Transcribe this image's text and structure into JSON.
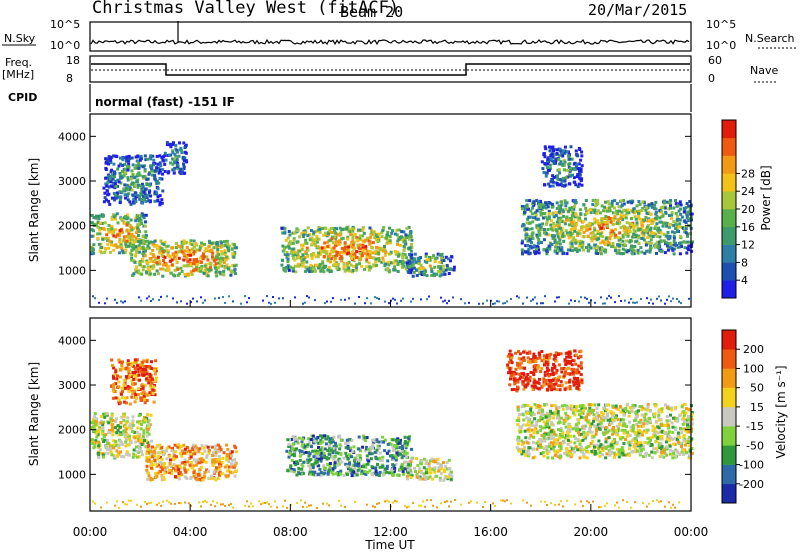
{
  "header": {
    "title": "Christmas Valley West (fitACF)",
    "beam": "Beam 20",
    "date": "20/Mar/2015"
  },
  "top_panels": {
    "nsky_label": "N.Sky",
    "nsearch_label": "N.Search",
    "nsky_ticks": [
      "10^5",
      "10^0"
    ],
    "nsearch_ticks": [
      "10^5",
      "10^0"
    ],
    "freq_label_1": "Freq.",
    "freq_label_2": "[MHz]",
    "freq_ticks": [
      "18",
      "8"
    ],
    "nave_label": "Nave",
    "nave_ticks": [
      "60",
      "0"
    ],
    "cpid_label": "CPID",
    "cpid_text": "normal (fast) -151 IF"
  },
  "chart_data": [
    {
      "type": "heatmap",
      "name": "power",
      "xlabel": "Time UT",
      "ylabel": "Slant Range [km]",
      "xlim": [
        0,
        24
      ],
      "ylim": [
        180,
        4500
      ],
      "x_ticks": [
        "00:00",
        "04:00",
        "08:00",
        "12:00",
        "16:00",
        "20:00",
        "00:00"
      ],
      "y_ticks": [
        1000,
        2000,
        3000,
        4000
      ],
      "colorbar": {
        "label": "Power [dB]",
        "ticks": [
          4,
          8,
          12,
          16,
          20,
          24,
          28
        ],
        "colors": [
          "#1e1ee6",
          "#1f4fb0",
          "#2e7fa8",
          "#3d9a6a",
          "#58b04a",
          "#a8c63a",
          "#f2c21a",
          "#f29a14",
          "#ee5a10",
          "#e01c0c"
        ]
      },
      "regions": [
        {
          "t0": 0.0,
          "t1": 2.2,
          "r0": 1400,
          "r1": 2300,
          "level": 0.55
        },
        {
          "t0": 1.6,
          "t1": 5.8,
          "r0": 900,
          "r1": 1700,
          "level": 0.6
        },
        {
          "t0": 0.5,
          "t1": 2.9,
          "r0": 2500,
          "r1": 3600,
          "level": 0.2
        },
        {
          "t0": 2.9,
          "t1": 3.8,
          "r0": 3200,
          "r1": 3900,
          "level": 0.15
        },
        {
          "t0": 7.6,
          "t1": 12.8,
          "r0": 1000,
          "r1": 2000,
          "level": 0.55
        },
        {
          "t0": 12.6,
          "t1": 14.5,
          "r0": 900,
          "r1": 1400,
          "level": 0.35
        },
        {
          "t0": 17.2,
          "t1": 24.0,
          "r0": 1400,
          "r1": 2600,
          "level": 0.45
        },
        {
          "t0": 18.0,
          "t1": 19.6,
          "r0": 2900,
          "r1": 3800,
          "level": 0.15
        }
      ]
    },
    {
      "type": "heatmap",
      "name": "velocity",
      "xlabel": "Time UT",
      "ylabel": "Slant Range [km]",
      "xlim": [
        0,
        24
      ],
      "ylim": [
        180,
        4500
      ],
      "x_ticks": [
        "00:00",
        "04:00",
        "08:00",
        "12:00",
        "16:00",
        "20:00",
        "00:00"
      ],
      "y_ticks": [
        1000,
        2000,
        3000,
        4000
      ],
      "colorbar": {
        "label": "Velocity [m s⁻¹]",
        "ticks": [
          200,
          100,
          50,
          15,
          -15,
          -50,
          -100,
          -200
        ],
        "colors": [
          "#1a2aa8",
          "#2f6aa8",
          "#2e9a3c",
          "#7fd23c",
          "#c8c8c0",
          "#f2d21a",
          "#f29a14",
          "#ee5a10",
          "#e01c0c"
        ]
      },
      "regions": [
        {
          "t0": 0.0,
          "t1": 2.4,
          "r0": 1400,
          "r1": 2400,
          "level": 0.5
        },
        {
          "t0": 2.2,
          "t1": 5.8,
          "r0": 900,
          "r1": 1700,
          "level": 0.68
        },
        {
          "t0": 0.8,
          "t1": 2.6,
          "r0": 2600,
          "r1": 3600,
          "level": 0.82
        },
        {
          "t0": 7.8,
          "t1": 12.8,
          "r0": 1000,
          "r1": 1900,
          "level": 0.3
        },
        {
          "t0": 12.6,
          "t1": 14.4,
          "r0": 900,
          "r1": 1400,
          "level": 0.5
        },
        {
          "t0": 17.0,
          "t1": 24.0,
          "r0": 1400,
          "r1": 2600,
          "level": 0.5
        },
        {
          "t0": 16.6,
          "t1": 19.6,
          "r0": 2900,
          "r1": 3800,
          "level": 0.92
        }
      ]
    }
  ]
}
